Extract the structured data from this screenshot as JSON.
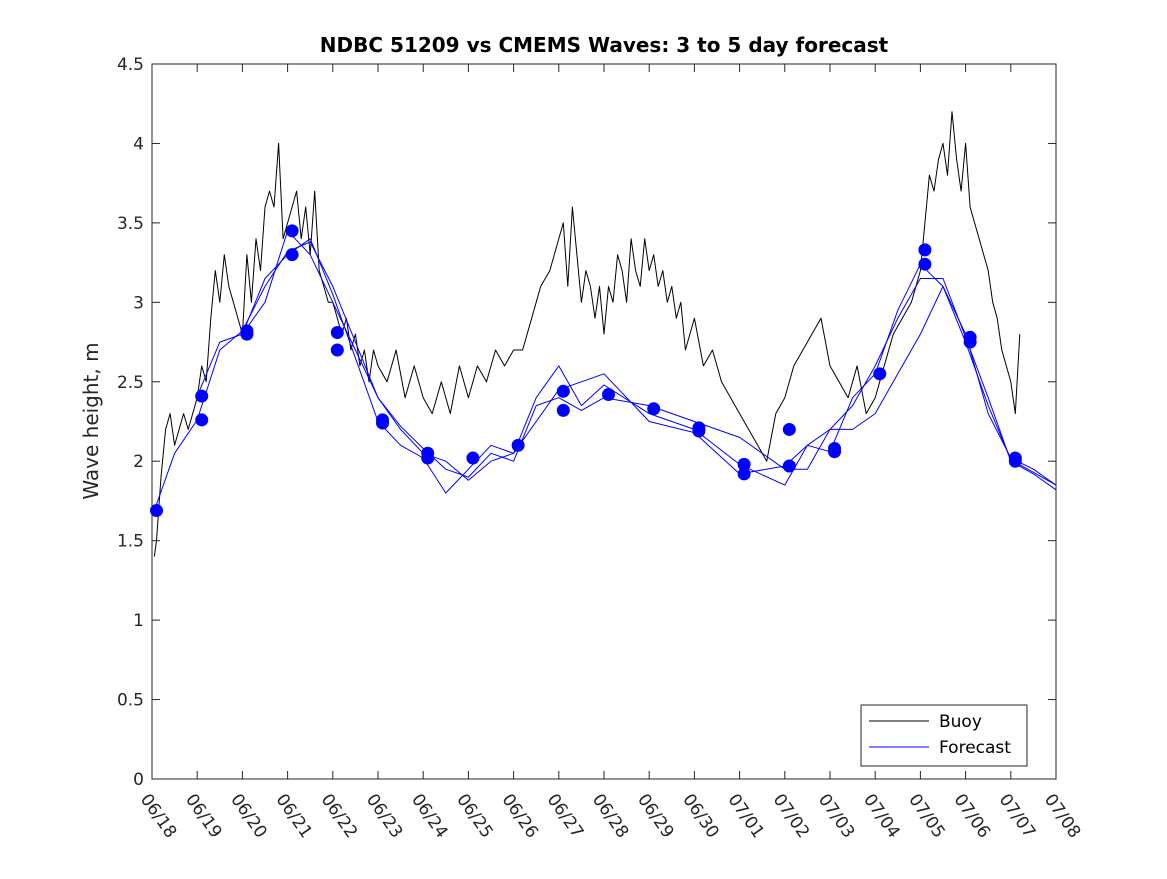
{
  "chart_data": {
    "type": "line",
    "title": "NDBC 51209 vs CMEMS Waves: 3 to 5 day forecast",
    "xlabel": "",
    "ylabel": "Wave height, m",
    "xlim": [
      0,
      20
    ],
    "ylim": [
      0,
      4.5
    ],
    "yticks": [
      0,
      0.5,
      1,
      1.5,
      2,
      2.5,
      3,
      3.5,
      4,
      4.5
    ],
    "ytick_labels": [
      "0",
      "0.5",
      "1",
      "1.5",
      "2",
      "2.5",
      "3",
      "3.5",
      "4",
      "4.5"
    ],
    "xtick_labels": [
      "06/18",
      "06/19",
      "06/20",
      "06/21",
      "06/22",
      "06/23",
      "06/24",
      "06/25",
      "06/26",
      "06/27",
      "06/28",
      "06/29",
      "06/30",
      "07/01",
      "07/02",
      "07/03",
      "07/04",
      "07/05",
      "07/06",
      "07/07",
      "07/08"
    ],
    "legend": {
      "position": "bottom-right",
      "entries": [
        "Buoy",
        "Forecast"
      ]
    },
    "colors": {
      "buoy": "#000000",
      "forecast": "#0000ff"
    },
    "grid": false,
    "series": [
      {
        "name": "Buoy",
        "kind": "line",
        "x": [
          0.05,
          0.1,
          0.2,
          0.3,
          0.4,
          0.5,
          0.6,
          0.7,
          0.8,
          0.9,
          1.0,
          1.1,
          1.2,
          1.3,
          1.4,
          1.5,
          1.6,
          1.7,
          1.8,
          1.9,
          2.0,
          2.1,
          2.2,
          2.3,
          2.4,
          2.5,
          2.6,
          2.7,
          2.8,
          2.9,
          3.0,
          3.1,
          3.2,
          3.3,
          3.4,
          3.5,
          3.6,
          3.7,
          3.8,
          3.9,
          4.0,
          4.1,
          4.2,
          4.3,
          4.4,
          4.5,
          4.6,
          4.7,
          4.8,
          4.9,
          5.0,
          5.2,
          5.4,
          5.6,
          5.8,
          6.0,
          6.2,
          6.4,
          6.6,
          6.8,
          7.0,
          7.2,
          7.4,
          7.6,
          7.8,
          8.0,
          8.2,
          8.4,
          8.6,
          8.8,
          9.0,
          9.1,
          9.2,
          9.3,
          9.4,
          9.5,
          9.6,
          9.7,
          9.8,
          9.9,
          10.0,
          10.1,
          10.2,
          10.3,
          10.4,
          10.5,
          10.6,
          10.7,
          10.8,
          10.9,
          11.0,
          11.1,
          11.2,
          11.3,
          11.4,
          11.5,
          11.6,
          11.7,
          11.8,
          11.9,
          12.0,
          12.2,
          12.4,
          12.6,
          12.8,
          13.0,
          13.2,
          13.4,
          13.6,
          13.8,
          14.0,
          14.2,
          14.4,
          14.6,
          14.8,
          15.0,
          15.2,
          15.4,
          15.6,
          15.8,
          16.0,
          16.2,
          16.4,
          16.6,
          16.8,
          17.0,
          17.1,
          17.2,
          17.3,
          17.4,
          17.5,
          17.6,
          17.7,
          17.8,
          17.9,
          18.0,
          18.1,
          18.2,
          18.3,
          18.4,
          18.5,
          18.6,
          18.7,
          18.8,
          18.9,
          19.0,
          19.1,
          19.2
        ],
        "y": [
          1.4,
          1.5,
          1.9,
          2.2,
          2.3,
          2.1,
          2.2,
          2.3,
          2.2,
          2.3,
          2.4,
          2.6,
          2.5,
          2.9,
          3.2,
          3.0,
          3.3,
          3.1,
          3.0,
          2.9,
          2.8,
          3.3,
          3.0,
          3.4,
          3.2,
          3.6,
          3.7,
          3.6,
          4.0,
          3.4,
          3.5,
          3.6,
          3.7,
          3.4,
          3.6,
          3.3,
          3.7,
          3.2,
          3.1,
          3.0,
          3.0,
          2.9,
          2.8,
          2.9,
          2.7,
          2.8,
          2.6,
          2.7,
          2.5,
          2.7,
          2.6,
          2.5,
          2.7,
          2.4,
          2.6,
          2.4,
          2.3,
          2.5,
          2.3,
          2.6,
          2.4,
          2.6,
          2.5,
          2.7,
          2.6,
          2.7,
          2.7,
          2.9,
          3.1,
          3.2,
          3.4,
          3.5,
          3.1,
          3.6,
          3.3,
          3.0,
          3.2,
          3.1,
          2.9,
          3.1,
          2.8,
          3.1,
          3.0,
          3.3,
          3.2,
          3.0,
          3.4,
          3.2,
          3.1,
          3.4,
          3.2,
          3.3,
          3.1,
          3.2,
          3.0,
          3.1,
          2.9,
          3.0,
          2.7,
          2.8,
          2.9,
          2.6,
          2.7,
          2.5,
          2.4,
          2.3,
          2.2,
          2.1,
          2.0,
          2.3,
          2.4,
          2.6,
          2.7,
          2.8,
          2.9,
          2.6,
          2.5,
          2.4,
          2.6,
          2.3,
          2.4,
          2.6,
          2.8,
          2.9,
          3.0,
          3.2,
          3.5,
          3.8,
          3.7,
          3.9,
          4.0,
          3.8,
          4.2,
          3.9,
          3.7,
          4.0,
          3.6,
          3.5,
          3.4,
          3.3,
          3.2,
          3.0,
          2.9,
          2.7,
          2.6,
          2.5,
          2.3,
          2.8
        ]
      },
      {
        "name": "Forecast",
        "kind": "line",
        "x": [
          0.05,
          0.5,
          1.0,
          1.5,
          2.0,
          2.5,
          3.0,
          3.5,
          4.0,
          4.5,
          5.0,
          5.5,
          6.0,
          6.5,
          7.0,
          7.5,
          8.0,
          8.5,
          9.0,
          9.5,
          10.0,
          11.0,
          12.0,
          13.0,
          14.0,
          14.5,
          15.0,
          15.5,
          16.0,
          16.5,
          17.0,
          17.5,
          18.0,
          18.5,
          19.0,
          19.5,
          20.0
        ],
        "y": [
          1.69,
          2.05,
          2.26,
          2.7,
          2.82,
          3.1,
          3.32,
          3.38,
          3.1,
          2.75,
          2.4,
          2.22,
          2.08,
          1.95,
          1.9,
          2.05,
          2.0,
          2.35,
          2.4,
          2.32,
          2.4,
          2.35,
          2.25,
          2.15,
          1.95,
          1.95,
          2.2,
          2.2,
          2.3,
          2.55,
          2.8,
          3.1,
          2.8,
          2.3,
          2.02,
          1.95,
          1.85
        ]
      },
      {
        "name": "Forecast",
        "kind": "line",
        "x": [
          1.0,
          1.5,
          2.0,
          2.5,
          3.0,
          3.5,
          4.0,
          4.5,
          5.0,
          5.5,
          6.0,
          6.5,
          7.0,
          7.5,
          8.0,
          8.5,
          9.0,
          9.5,
          10.0,
          11.0,
          12.0,
          13.0,
          14.0,
          14.5,
          15.0,
          15.5,
          16.0,
          16.5,
          17.0,
          17.5,
          18.0,
          18.5,
          19.0,
          19.5,
          20.0
        ],
        "y": [
          2.41,
          2.75,
          2.8,
          3.0,
          3.45,
          3.3,
          3.0,
          2.7,
          2.4,
          2.2,
          2.05,
          2.0,
          1.88,
          2.0,
          2.05,
          2.4,
          2.6,
          2.35,
          2.48,
          2.3,
          2.2,
          1.98,
          1.85,
          2.1,
          2.2,
          2.35,
          2.6,
          2.9,
          3.15,
          3.15,
          2.78,
          2.4,
          2.0,
          1.92,
          1.82
        ]
      },
      {
        "name": "Forecast",
        "kind": "line",
        "x": [
          2.0,
          2.5,
          3.0,
          3.5,
          4.0,
          4.5,
          5.0,
          5.5,
          6.0,
          6.5,
          7.0,
          7.5,
          8.0,
          8.5,
          9.0,
          9.5,
          10.0,
          11.0,
          12.0,
          13.0,
          14.0,
          14.5,
          15.0,
          15.5,
          16.0,
          16.5,
          17.0,
          17.5,
          18.0,
          18.5,
          19.0,
          19.5,
          20.0
        ],
        "y": [
          2.8,
          3.15,
          3.3,
          3.4,
          3.05,
          2.65,
          2.25,
          2.1,
          2.02,
          1.8,
          1.95,
          2.1,
          2.05,
          2.25,
          2.45,
          2.5,
          2.55,
          2.25,
          2.18,
          1.92,
          1.97,
          2.1,
          2.06,
          2.4,
          2.55,
          2.95,
          3.24,
          3.1,
          2.75,
          2.35,
          2.01,
          1.93,
          1.85
        ]
      }
    ],
    "markers": {
      "name": "Forecast",
      "x": [
        0.1,
        1.1,
        1.1,
        2.1,
        2.1,
        3.1,
        3.1,
        4.1,
        4.1,
        5.1,
        5.1,
        6.1,
        6.1,
        7.1,
        8.1,
        9.1,
        9.1,
        10.1,
        11.1,
        12.1,
        12.1,
        13.1,
        13.1,
        14.1,
        14.1,
        15.1,
        15.1,
        16.1,
        17.1,
        17.1,
        18.1,
        18.1,
        19.1,
        19.1
      ],
      "y": [
        1.69,
        2.41,
        2.26,
        2.82,
        2.8,
        3.45,
        3.3,
        2.81,
        2.7,
        2.26,
        2.24,
        2.05,
        2.02,
        2.02,
        2.1,
        2.44,
        2.32,
        2.42,
        2.33,
        2.21,
        2.19,
        1.98,
        1.92,
        2.2,
        1.97,
        2.08,
        2.06,
        2.55,
        3.33,
        3.24,
        2.78,
        2.75,
        2.02,
        2.0
      ]
    }
  }
}
